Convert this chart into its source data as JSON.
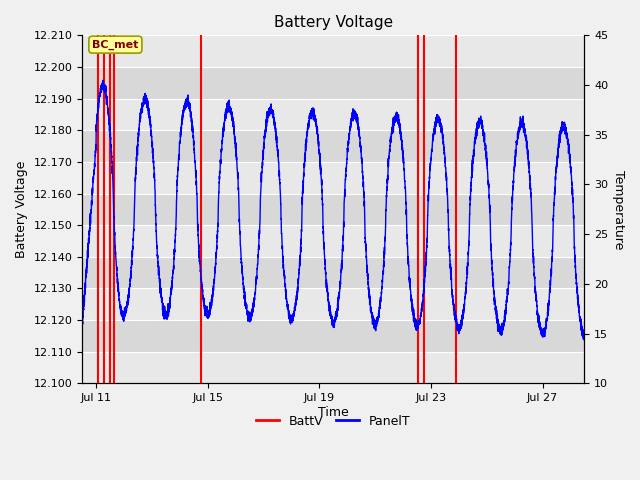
{
  "title": "Battery Voltage",
  "xlabel": "Time",
  "ylabel_left": "Battery Voltage",
  "ylabel_right": "Temperature",
  "ylim_left": [
    12.1,
    12.21
  ],
  "ylim_right": [
    10,
    45
  ],
  "yticks_left": [
    12.1,
    12.11,
    12.12,
    12.13,
    12.14,
    12.15,
    12.16,
    12.17,
    12.18,
    12.19,
    12.2,
    12.21
  ],
  "yticks_right": [
    10,
    15,
    20,
    25,
    30,
    35,
    40,
    45
  ],
  "xlim": [
    10.5,
    28.5
  ],
  "xtick_labels": [
    "Jul 11",
    "Jul 15",
    "Jul 19",
    "Jul 23",
    "Jul 27"
  ],
  "xtick_positions": [
    11,
    15,
    19,
    23,
    27
  ],
  "background_color": "#f0f0f0",
  "plot_bg_color": "#e8e8e8",
  "grid_color": "#ffffff",
  "band_colors": [
    "#e8e8e8",
    "#d8d8d8"
  ],
  "batt_color": "#ff0000",
  "panel_color": "#0000ff",
  "legend_batt": "BattV",
  "legend_panel": "PanelT",
  "bc_met_label": "BC_met",
  "bc_met_bg": "#ffff99",
  "bc_met_border": "#999900",
  "bc_met_text_color": "#800000",
  "red_lines_days": [
    11.05,
    11.3,
    11.5,
    11.65,
    14.75,
    22.55,
    22.75,
    23.9
  ],
  "osc_period": 1.5,
  "panel_seed": 12
}
